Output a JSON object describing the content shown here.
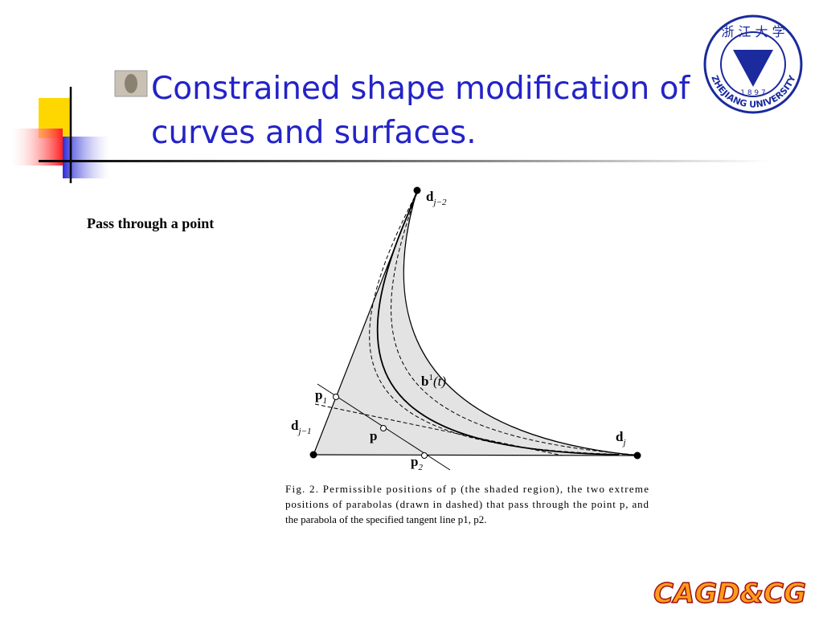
{
  "slide": {
    "title_lines": [
      "Constrained shape modification of",
      "curves and surfaces."
    ],
    "subheading": "Pass through a point",
    "figure": {
      "labels": [
        {
          "main": "d",
          "sub": "j−2"
        },
        {
          "main": "b",
          "sup": "1",
          "rest": "(t)"
        },
        {
          "main": "p",
          "sub": "1"
        },
        {
          "main": "d",
          "sub": "j−1"
        },
        {
          "main": "p"
        },
        {
          "main": "p",
          "sub": "2"
        },
        {
          "main": "d",
          "sub": "j"
        }
      ],
      "caption_lines": [
        "Fig. 2. Permissible positions of p (the shaded region), the two extreme",
        "positions of parabolas (drawn in dashed) that pass through the point p, and",
        "the parabola of the specified tangent line p1, p2."
      ]
    },
    "logo": {
      "chinese": "浙 江 大 学",
      "year": "1 8 9 7",
      "name": "ZHEJIANG UNIVERSITY"
    },
    "footer": "CAGD&CG"
  }
}
